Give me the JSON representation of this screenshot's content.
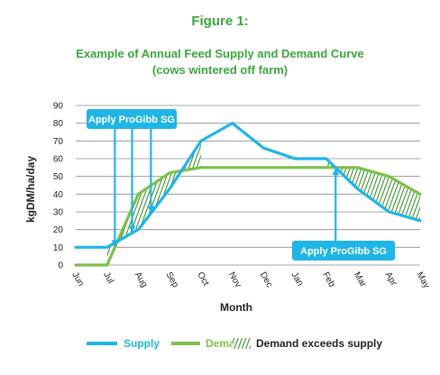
{
  "heading": {
    "figure": "Figure 1:",
    "title_line1": "Example of Annual Feed Supply and Demand Curve",
    "title_line2": "(cows wintered off farm)"
  },
  "colors": {
    "heading": "#3aa63e",
    "supply": "#1fb5e6",
    "demand": "#7cc04a",
    "hatch": "#3d8f2a",
    "grid": "#8a8a8a",
    "axis": "#222222",
    "callout": "#1fb5e6"
  },
  "chart_data": {
    "type": "line",
    "title": "Example of Annual Feed Supply and Demand Curve",
    "subtitle": "(cows wintered off farm)",
    "xlabel": "Month",
    "ylabel": "kgDM/ha/day",
    "ylim": [
      0,
      90
    ],
    "yticks": [
      0,
      10,
      20,
      30,
      40,
      50,
      60,
      70,
      80,
      90
    ],
    "grid": true,
    "categories": [
      "Jun",
      "Jul",
      "Aug",
      "Sep",
      "Oct",
      "Nov",
      "Dec",
      "Jan",
      "Feb",
      "Mar",
      "Apr",
      "May"
    ],
    "series": [
      {
        "name": "Supply",
        "values": [
          10,
          10,
          20,
          43,
          70,
          80,
          66,
          60,
          60,
          43,
          30,
          25
        ]
      },
      {
        "name": "Demand",
        "values": [
          0,
          0,
          40,
          52,
          55,
          55,
          55,
          55,
          55,
          55,
          50,
          40
        ]
      }
    ],
    "legend": {
      "position": "bottom",
      "entries": [
        "Supply",
        "Demand",
        "Demand exceeds supply"
      ]
    },
    "annotations": [
      {
        "text": "Apply ProGibb SG",
        "targets": [
          1.25,
          1.8,
          2.4
        ]
      },
      {
        "text": "Apply ProGibb SG",
        "targets": [
          8.3
        ]
      }
    ]
  }
}
